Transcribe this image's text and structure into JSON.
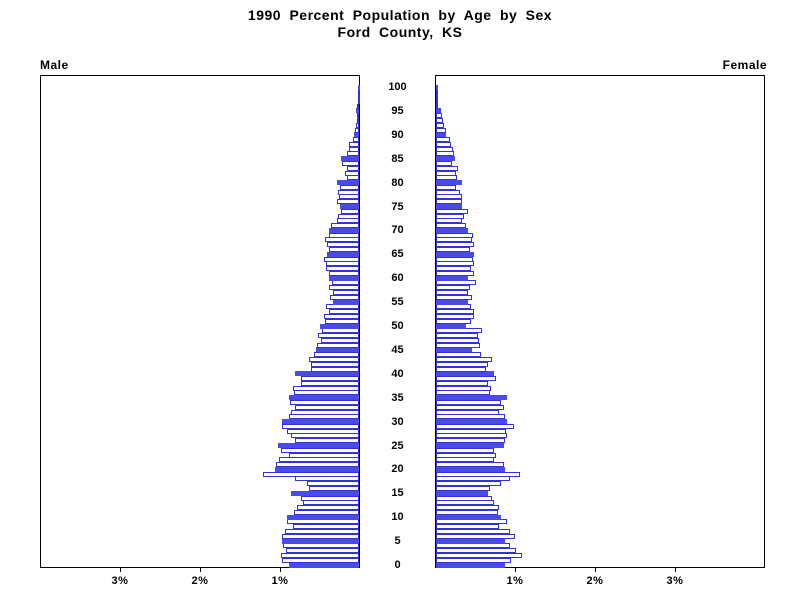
{
  "title": {
    "line1": "1990 Percent Population by Age by Sex",
    "line2": "Ford County, KS"
  },
  "side_labels": {
    "male": "Male",
    "female": "Female"
  },
  "chart_data": {
    "type": "bar",
    "subtype": "population_pyramid",
    "title": "1990 Percent Population by Age by Sex",
    "subtitle": "Ford County, KS",
    "xlabel": "Percent of population",
    "ylabel": "Age (single years)",
    "xlim_per_side": [
      0,
      4
    ],
    "grid": false,
    "x_ticks": [
      {
        "value": 1,
        "label": "1%"
      },
      {
        "value": 2,
        "label": "2%"
      },
      {
        "value": 3,
        "label": "3%"
      }
    ],
    "age_tick_interval": 5,
    "age_tick_labels": [
      "0",
      "5",
      "10",
      "15",
      "20",
      "25",
      "30",
      "35",
      "40",
      "45",
      "50",
      "55",
      "60",
      "65",
      "70",
      "75",
      "80",
      "85",
      "90",
      "95",
      "100"
    ],
    "solid_bar_every_years": 5,
    "ages_range": [
      0,
      100
    ],
    "series": [
      {
        "name": "Male",
        "side": "left",
        "values": [
          0.87,
          0.96,
          0.98,
          0.91,
          0.95,
          0.96,
          0.96,
          0.93,
          0.82,
          0.9,
          0.9,
          0.81,
          0.78,
          0.7,
          0.73,
          0.85,
          0.62,
          0.65,
          0.8,
          1.2,
          1.05,
          1.04,
          1.0,
          0.88,
          0.98,
          1.01,
          0.8,
          0.85,
          0.9,
          0.96,
          0.96,
          0.88,
          0.85,
          0.8,
          0.86,
          0.88,
          0.81,
          0.83,
          0.73,
          0.72,
          0.8,
          0.6,
          0.6,
          0.63,
          0.56,
          0.54,
          0.52,
          0.48,
          0.51,
          0.46,
          0.49,
          0.42,
          0.44,
          0.38,
          0.41,
          0.33,
          0.36,
          0.33,
          0.38,
          0.34,
          0.38,
          0.38,
          0.41,
          0.41,
          0.44,
          0.4,
          0.38,
          0.4,
          0.42,
          0.38,
          0.37,
          0.35,
          0.28,
          0.26,
          0.22,
          0.24,
          0.28,
          0.25,
          0.26,
          0.24,
          0.27,
          0.15,
          0.17,
          0.15,
          0.21,
          0.22,
          0.15,
          0.13,
          0.12,
          0.08,
          0.06,
          0.05,
          0.04,
          0.03,
          0.02,
          0.04,
          0.02,
          0.01,
          0.01,
          0.01,
          0.01
        ]
      },
      {
        "name": "Female",
        "side": "right",
        "values": [
          0.86,
          0.94,
          1.08,
          1.0,
          0.92,
          0.86,
          0.99,
          0.92,
          0.79,
          0.89,
          0.81,
          0.77,
          0.79,
          0.73,
          0.7,
          0.65,
          0.68,
          0.81,
          0.93,
          1.05,
          0.86,
          0.85,
          0.73,
          0.75,
          0.72,
          0.85,
          0.86,
          0.89,
          0.88,
          0.97,
          0.89,
          0.86,
          0.79,
          0.85,
          0.81,
          0.89,
          0.67,
          0.69,
          0.65,
          0.75,
          0.72,
          0.63,
          0.65,
          0.7,
          0.56,
          0.45,
          0.55,
          0.54,
          0.53,
          0.57,
          0.38,
          0.44,
          0.47,
          0.48,
          0.44,
          0.4,
          0.45,
          0.4,
          0.43,
          0.5,
          0.4,
          0.48,
          0.44,
          0.47,
          0.46,
          0.48,
          0.43,
          0.47,
          0.45,
          0.46,
          0.4,
          0.37,
          0.33,
          0.35,
          0.4,
          0.33,
          0.32,
          0.33,
          0.3,
          0.25,
          0.32,
          0.26,
          0.25,
          0.27,
          0.2,
          0.24,
          0.23,
          0.21,
          0.19,
          0.17,
          0.12,
          0.12,
          0.1,
          0.09,
          0.08,
          0.06,
          0.02,
          0.03,
          0.02,
          0.01,
          0.01
        ]
      }
    ],
    "colors": {
      "bar_fill": "#4a4af0",
      "bar_stroke": "#3232dc",
      "axis": "#000000",
      "hollow_fill": "#ffffff",
      "text": "#000000",
      "background": "#ffffff"
    }
  }
}
